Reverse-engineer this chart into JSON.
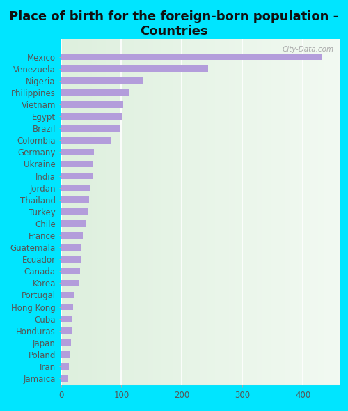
{
  "title": "Place of birth for the foreign-born population -\nCountries",
  "categories": [
    "Mexico",
    "Venezuela",
    "Nigeria",
    "Philippines",
    "Vietnam",
    "Egypt",
    "Brazil",
    "Colombia",
    "Germany",
    "Ukraine",
    "India",
    "Jordan",
    "Thailand",
    "Turkey",
    "Chile",
    "France",
    "Guatemala",
    "Ecuador",
    "Canada",
    "Korea",
    "Portugal",
    "Hong Kong",
    "Cuba",
    "Honduras",
    "Japan",
    "Poland",
    "Iran",
    "Jamaica"
  ],
  "values": [
    432,
    243,
    136,
    113,
    103,
    101,
    97,
    82,
    55,
    53,
    52,
    48,
    46,
    45,
    42,
    36,
    34,
    33,
    32,
    29,
    22,
    20,
    19,
    18,
    17,
    16,
    13,
    12
  ],
  "bar_color": "#b39ddb",
  "outer_background": "#00e5ff",
  "plot_bg_top": "#dff0df",
  "plot_bg_bottom": "#f0f8f0",
  "grid_color": "#ffffff",
  "title_fontsize": 13,
  "tick_fontsize": 8.5,
  "xlim": [
    0,
    460
  ],
  "xticks": [
    0,
    100,
    200,
    300,
    400
  ],
  "watermark": "City-Data.com"
}
